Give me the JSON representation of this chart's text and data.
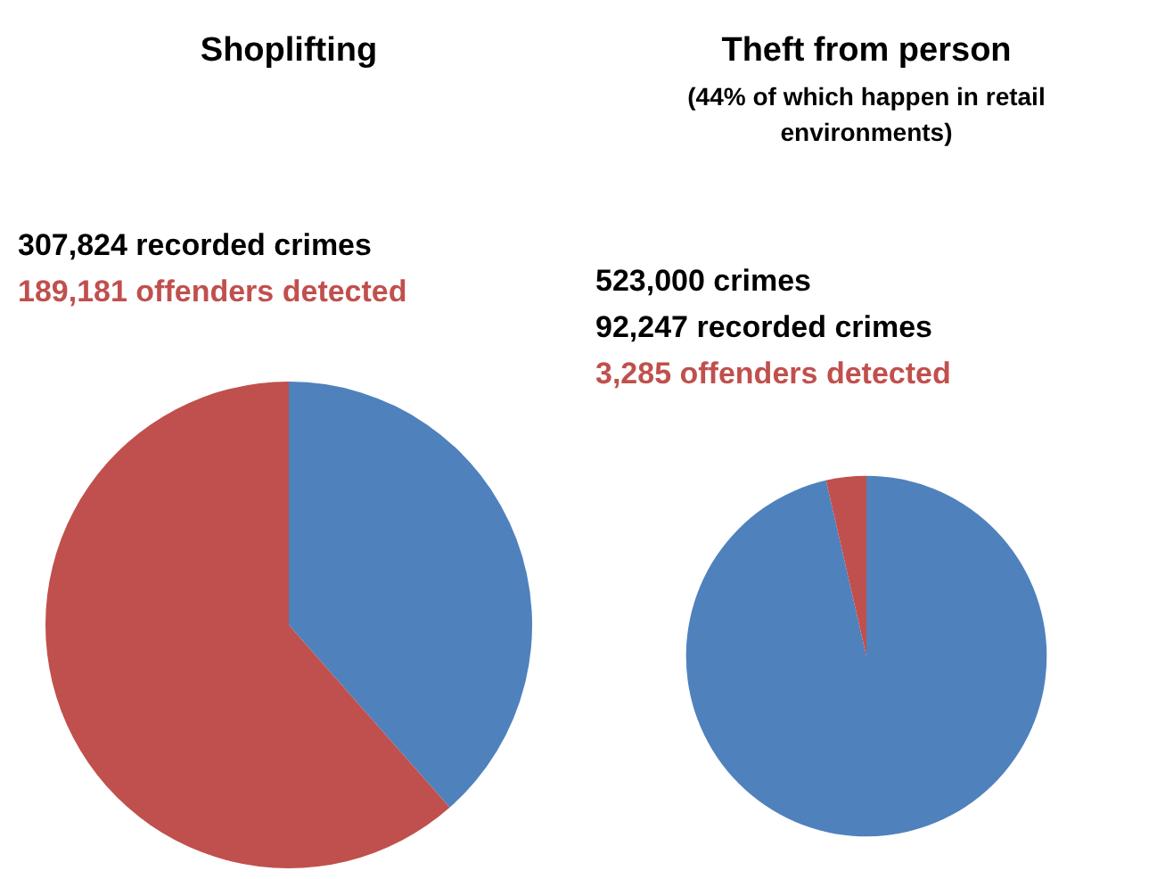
{
  "chart_data": [
    {
      "type": "pie",
      "title": "Shoplifting",
      "annotations": [
        "307,824 recorded crimes",
        "189,181 offenders detected"
      ],
      "categories": [
        null,
        null
      ],
      "values": [
        38.5,
        61.5
      ],
      "colors": [
        "#4f81bd",
        "#c0504d"
      ],
      "legend": false
    },
    {
      "type": "pie",
      "title": "Theft from person",
      "subtitle": "(44% of which happen in retail environments)",
      "annotations": [
        "523,000 crimes",
        "92,247 recorded crimes",
        "3,285 offenders detected"
      ],
      "categories": [
        null,
        null
      ],
      "values": [
        96.4,
        3.6
      ],
      "colors": [
        "#4f81bd",
        "#c0504d"
      ],
      "legend": false
    }
  ]
}
